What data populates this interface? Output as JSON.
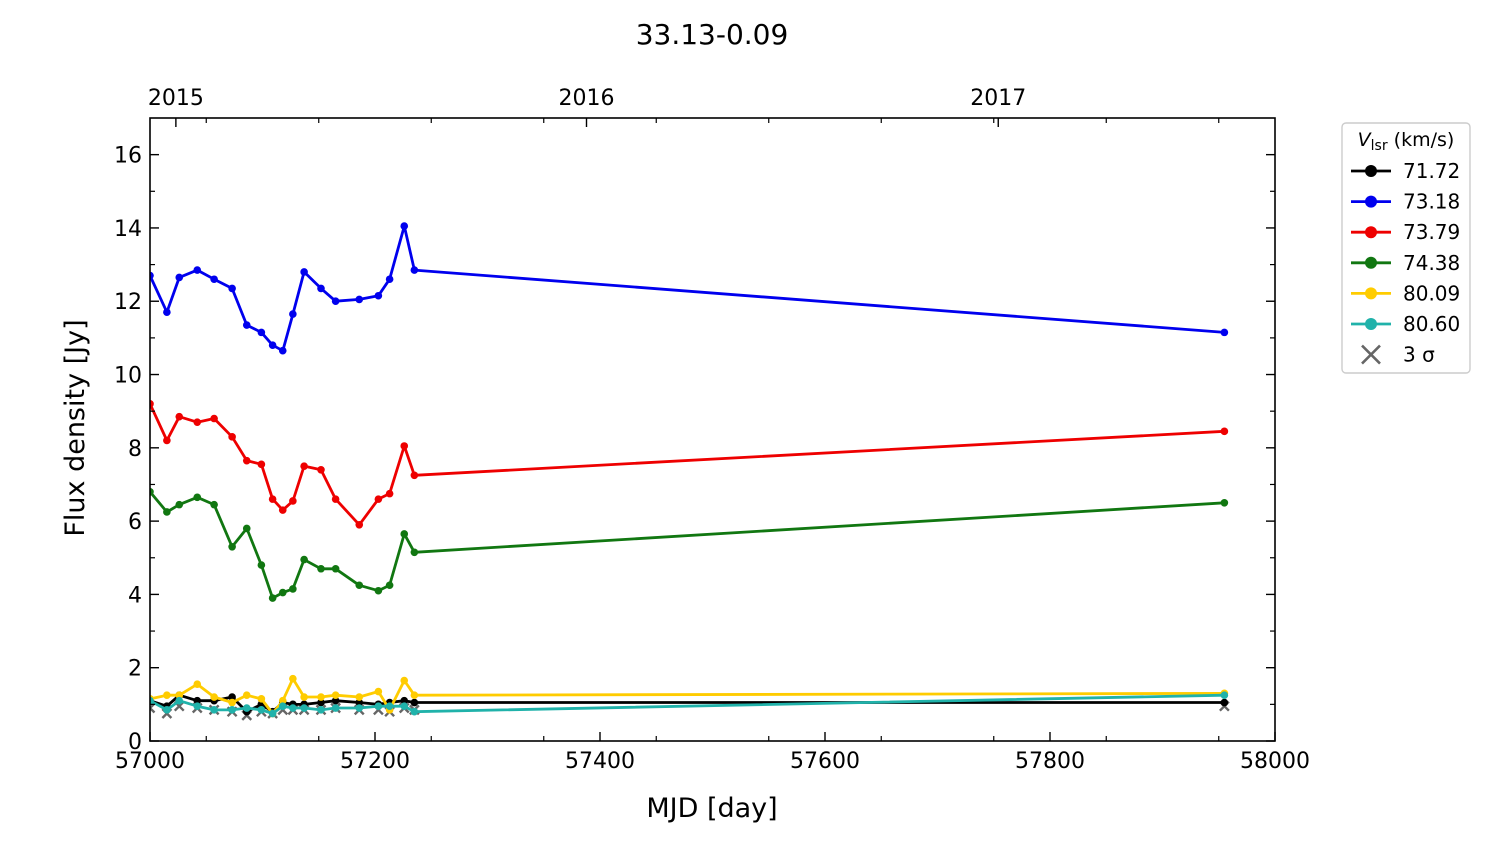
{
  "chart_data": {
    "type": "line",
    "title": "33.13-0.09",
    "xlabel": "MJD [day]",
    "ylabel": "Flux density [Jy]",
    "xlim": [
      57000,
      58000
    ],
    "ylim": [
      0,
      17
    ],
    "x_ticks": [
      "57000",
      "57200",
      "57400",
      "57600",
      "57800",
      "58000"
    ],
    "y_ticks": [
      "0",
      "2",
      "4",
      "6",
      "8",
      "10",
      "12",
      "14",
      "16"
    ],
    "top_axis_ticks": [
      {
        "label": "2015",
        "mjd": 57023
      },
      {
        "label": "2016",
        "mjd": 57388
      },
      {
        "label": "2017",
        "mjd": 57754
      }
    ],
    "grid": false,
    "legend_title": "V_lsr (km/s)",
    "legend_position": "outside-top-right",
    "series": [
      {
        "name": "71.72",
        "color": "#000000",
        "x": [
          57000,
          57015,
          57026,
          57042,
          57057,
          57073,
          57086,
          57099,
          57109,
          57118,
          57127,
          57137,
          57152,
          57165,
          57186,
          57203,
          57213,
          57226,
          57235,
          57955
        ],
        "y": [
          1.1,
          0.95,
          1.25,
          1.1,
          1.1,
          1.2,
          0.8,
          1.0,
          0.8,
          1.05,
          1.0,
          1.0,
          1.05,
          1.1,
          1.05,
          1.0,
          1.05,
          1.1,
          1.05,
          1.05
        ]
      },
      {
        "name": "73.18",
        "color": "#0000ee",
        "x": [
          57000,
          57015,
          57026,
          57042,
          57057,
          57073,
          57086,
          57099,
          57109,
          57118,
          57127,
          57137,
          57152,
          57165,
          57186,
          57203,
          57213,
          57226,
          57235,
          57955
        ],
        "y": [
          12.7,
          11.7,
          12.65,
          12.85,
          12.6,
          12.35,
          11.35,
          11.15,
          10.8,
          10.65,
          11.65,
          12.8,
          12.35,
          12.0,
          12.05,
          12.15,
          12.6,
          14.05,
          12.85,
          11.15
        ]
      },
      {
        "name": "73.79",
        "color": "#ee0000",
        "x": [
          57000,
          57015,
          57026,
          57042,
          57057,
          57073,
          57086,
          57099,
          57109,
          57118,
          57127,
          57137,
          57152,
          57165,
          57186,
          57203,
          57213,
          57226,
          57235,
          57955
        ],
        "y": [
          9.2,
          8.2,
          8.85,
          8.7,
          8.8,
          8.3,
          7.65,
          7.55,
          6.6,
          6.3,
          6.55,
          7.5,
          7.4,
          6.6,
          5.9,
          6.6,
          6.75,
          8.05,
          7.25,
          8.45
        ]
      },
      {
        "name": "74.38",
        "color": "#117711",
        "x": [
          57000,
          57015,
          57026,
          57042,
          57057,
          57073,
          57086,
          57099,
          57109,
          57118,
          57127,
          57137,
          57152,
          57165,
          57186,
          57203,
          57213,
          57226,
          57235,
          57955
        ],
        "y": [
          6.8,
          6.25,
          6.45,
          6.65,
          6.45,
          5.3,
          5.8,
          4.8,
          3.9,
          4.05,
          4.15,
          4.95,
          4.7,
          4.7,
          4.25,
          4.1,
          4.25,
          5.65,
          5.15,
          6.5
        ]
      },
      {
        "name": "80.09",
        "color": "#ffcc00",
        "x": [
          57000,
          57015,
          57026,
          57042,
          57057,
          57073,
          57086,
          57099,
          57109,
          57118,
          57127,
          57137,
          57152,
          57165,
          57186,
          57203,
          57213,
          57226,
          57235,
          57955
        ],
        "y": [
          1.15,
          1.25,
          1.25,
          1.55,
          1.2,
          1.05,
          1.25,
          1.15,
          0.75,
          1.1,
          1.7,
          1.2,
          1.2,
          1.25,
          1.2,
          1.35,
          0.85,
          1.65,
          1.25,
          1.3
        ]
      },
      {
        "name": "80.60",
        "color": "#20b2aa",
        "x": [
          57000,
          57015,
          57026,
          57042,
          57057,
          57073,
          57086,
          57099,
          57109,
          57118,
          57127,
          57137,
          57152,
          57165,
          57186,
          57203,
          57213,
          57226,
          57235,
          57955
        ],
        "y": [
          1.1,
          0.85,
          1.1,
          0.95,
          0.85,
          0.85,
          0.9,
          0.85,
          0.75,
          0.95,
          0.9,
          0.9,
          0.85,
          0.9,
          0.9,
          0.95,
          0.95,
          0.95,
          0.8,
          1.25
        ]
      }
    ],
    "sigma_marker": {
      "name": "3 σ",
      "color": "#666666",
      "x": [
        57000,
        57015,
        57026,
        57042,
        57057,
        57073,
        57086,
        57099,
        57109,
        57118,
        57127,
        57137,
        57152,
        57165,
        57186,
        57203,
        57213,
        57226,
        57235,
        57955
      ],
      "y": [
        0.9,
        0.75,
        0.95,
        0.9,
        0.85,
        0.8,
        0.7,
        0.8,
        0.75,
        0.85,
        0.85,
        0.85,
        0.85,
        0.9,
        0.85,
        0.85,
        0.8,
        0.9,
        0.85,
        0.95
      ]
    }
  }
}
